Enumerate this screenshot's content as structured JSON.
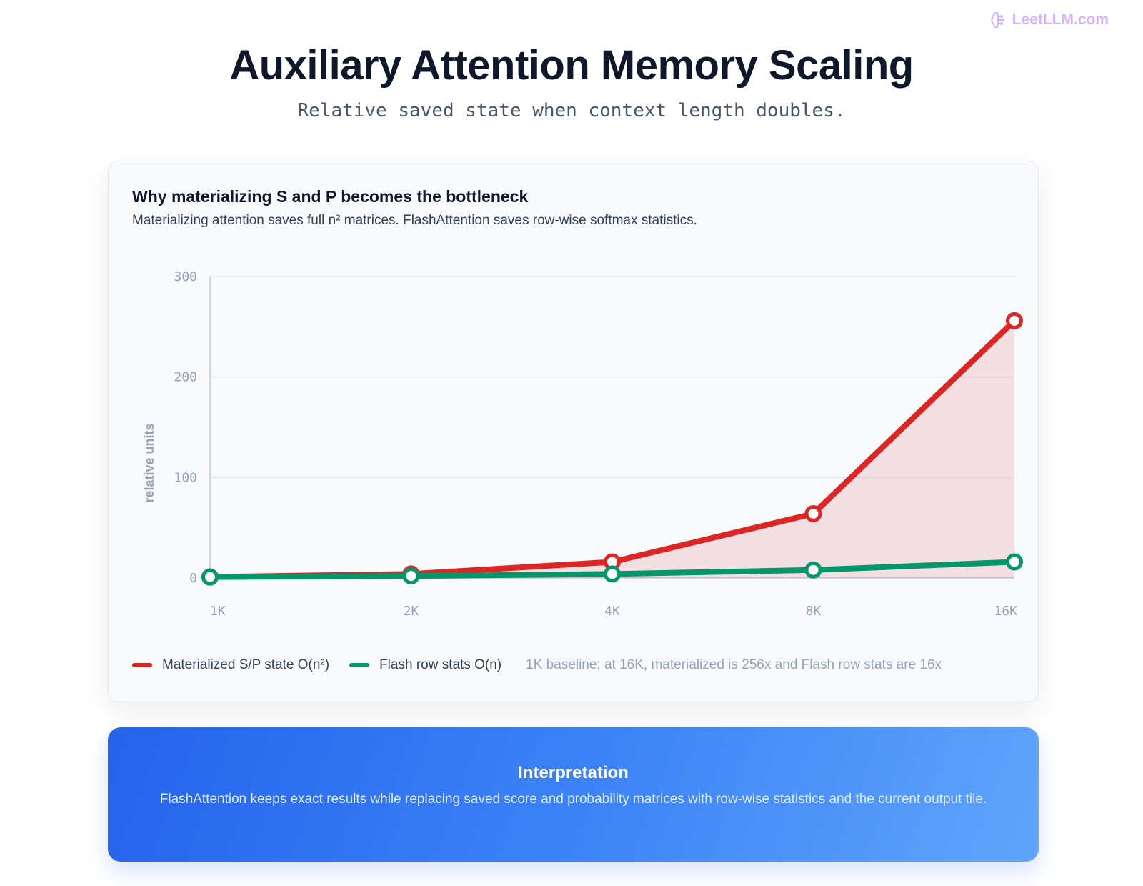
{
  "brand": {
    "text": "LeetLLM.com",
    "icon": "brain-icon",
    "color": "#d8b4fe"
  },
  "header": {
    "title": "Auxiliary Attention Memory Scaling",
    "subtitle": "Relative saved state when context length doubles."
  },
  "card": {
    "title": "Why materializing S and P becomes the bottleneck",
    "description": "Materializing attention saves full n² matrices. FlashAttention saves row-wise softmax statistics."
  },
  "chart_data": {
    "type": "line",
    "title": "Why materializing S and P becomes the bottleneck",
    "xlabel": "",
    "ylabel": "relative units",
    "categories": [
      "1K",
      "2K",
      "4K",
      "8K",
      "16K"
    ],
    "y_ticks": [
      "0",
      "100",
      "200",
      "300"
    ],
    "ylim": [
      0,
      300
    ],
    "grid": true,
    "legend_position": "bottom-left",
    "series": [
      {
        "name": "Materialized S/P state O(n²)",
        "values": [
          1,
          4,
          16,
          64,
          256
        ],
        "color": "#dc2626",
        "area_fill": true
      },
      {
        "name": "Flash row stats O(n)",
        "values": [
          1,
          2,
          4,
          8,
          16
        ],
        "color": "#059669",
        "area_fill": false
      }
    ],
    "note": "1K baseline; at 16K, materialized is 256x and Flash row stats are 16x"
  },
  "interpretation": {
    "title": "Interpretation",
    "text": "FlashAttention keeps exact results while replacing saved score and probability matrices with row-wise statistics and the current output tile."
  }
}
